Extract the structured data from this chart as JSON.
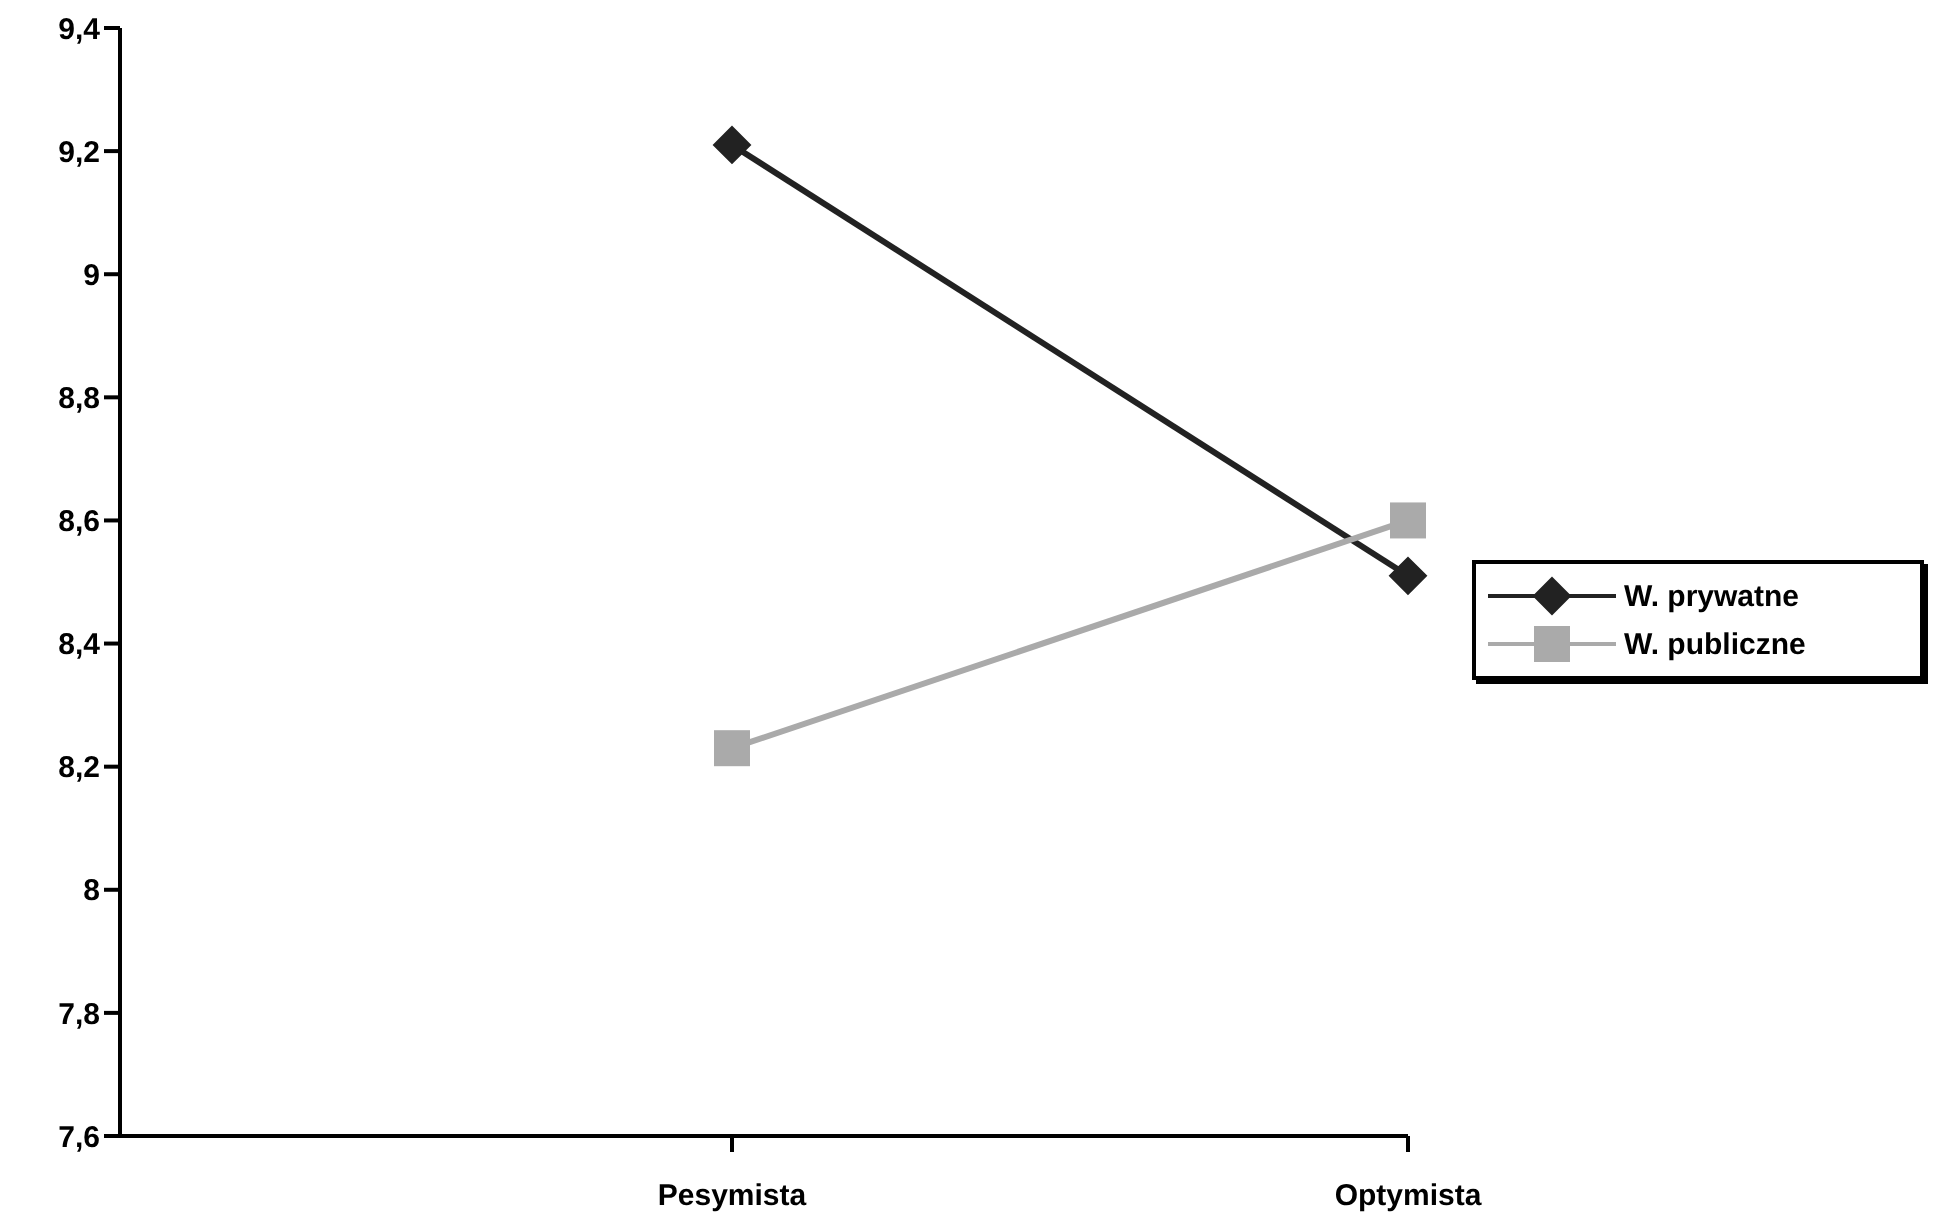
{
  "chart_data": {
    "type": "line",
    "categories": [
      "Pesymista",
      "Optymista"
    ],
    "series": [
      {
        "name": "W. prywatne",
        "color": "#222222",
        "values": [
          9.21,
          8.51
        ],
        "marker": "diamond"
      },
      {
        "name": "W. publiczne",
        "color": "#aaaaaa",
        "values": [
          8.23,
          8.6
        ],
        "marker": "square"
      }
    ],
    "ylim": [
      7.6,
      9.4
    ],
    "yticks": [
      {
        "value": 7.6,
        "label": "7,6"
      },
      {
        "value": 7.8,
        "label": "7,8"
      },
      {
        "value": 8,
        "label": "8"
      },
      {
        "value": 8.2,
        "label": "8,2"
      },
      {
        "value": 8.4,
        "label": "8,4"
      },
      {
        "value": 8.6,
        "label": "8,6"
      },
      {
        "value": 8.8,
        "label": "8,8"
      },
      {
        "value": 9,
        "label": "9"
      },
      {
        "value": 9.2,
        "label": "9,2"
      },
      {
        "value": 9.4,
        "label": "9,4"
      }
    ],
    "grid": false,
    "legend": "right",
    "line_style": "solid"
  }
}
